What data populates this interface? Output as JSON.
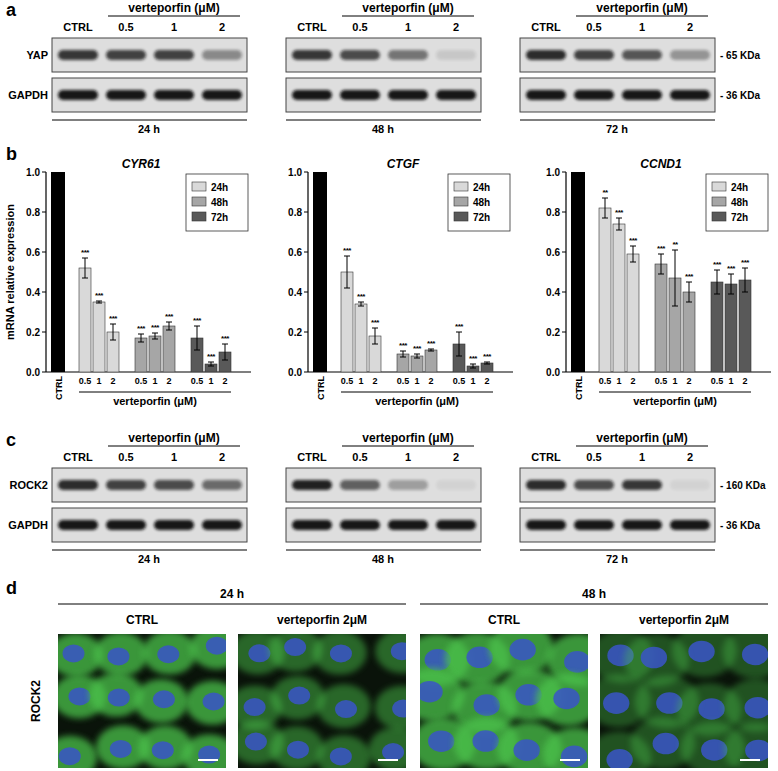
{
  "panel_labels": [
    "a",
    "b",
    "c",
    "d"
  ],
  "blots": [
    {
      "treatment": "verteporfin (μM)",
      "lanes": [
        "CTRL",
        "0.5",
        "1",
        "2"
      ],
      "markers": [
        {
          "name": "YAP",
          "size": "- 65 KDa"
        },
        {
          "name": "GAPDH",
          "size": "- 36 KDa"
        }
      ],
      "groups": [
        {
          "time": "24 h",
          "intensity": [
            [
              0.8,
              0.75,
              0.75,
              0.4
            ],
            [
              0.95,
              0.95,
              0.95,
              0.95
            ]
          ]
        },
        {
          "time": "48 h",
          "intensity": [
            [
              0.8,
              0.7,
              0.5,
              0.1
            ],
            [
              0.95,
              0.95,
              0.95,
              0.95
            ]
          ]
        },
        {
          "time": "72 h",
          "intensity": [
            [
              0.85,
              0.75,
              0.65,
              0.35
            ],
            [
              0.95,
              0.95,
              0.95,
              0.95
            ]
          ]
        }
      ]
    },
    {
      "treatment": "verteporfin (μM)",
      "lanes": [
        "CTRL",
        "0.5",
        "1",
        "2"
      ],
      "markers": [
        {
          "name": "ROCK2",
          "size": "- 160 KDa"
        },
        {
          "name": "GAPDH",
          "size": "- 36 KDa"
        }
      ],
      "groups": [
        {
          "time": "24 h",
          "intensity": [
            [
              0.85,
              0.75,
              0.7,
              0.55
            ],
            [
              0.95,
              0.95,
              0.95,
              0.95
            ]
          ]
        },
        {
          "time": "48 h",
          "intensity": [
            [
              0.9,
              0.6,
              0.3,
              0.05
            ],
            [
              0.95,
              0.95,
              0.95,
              0.95
            ]
          ]
        },
        {
          "time": "72 h",
          "intensity": [
            [
              0.85,
              0.7,
              0.8,
              0.05
            ],
            [
              0.95,
              0.95,
              0.95,
              0.95
            ]
          ]
        }
      ]
    }
  ],
  "chart_data": [
    {
      "type": "bar",
      "title": "CYR61",
      "ylabel": "mRNA relative expression",
      "xlabel": "verteporfin (μM)",
      "control": {
        "label": "CTRL",
        "value": 1,
        "color": "#000000"
      },
      "categories": [
        "0.5",
        "1",
        "2"
      ],
      "series": [
        {
          "name": "24h",
          "color": "#d9d9d9",
          "values": [
            0.52,
            0.35,
            0.2
          ],
          "errors": [
            0.05,
            0.005,
            0.04
          ],
          "significance": [
            "***",
            "***",
            "***"
          ]
        },
        {
          "name": "48h",
          "color": "#a6a6a6",
          "values": [
            0.17,
            0.18,
            0.23
          ],
          "errors": [
            0.02,
            0.015,
            0.02
          ],
          "significance": [
            "***",
            "***",
            "***"
          ]
        },
        {
          "name": "72h",
          "color": "#595959",
          "values": [
            0.17,
            0.04,
            0.1
          ],
          "errors": [
            0.06,
            0.01,
            0.04
          ],
          "significance": [
            "***",
            "***",
            "***"
          ]
        }
      ],
      "ylim": [
        0,
        1
      ],
      "yticks": [
        {
          "value": 0,
          "label": "0.0"
        },
        {
          "value": 0.2,
          "label": "0.2"
        },
        {
          "value": 0.4,
          "label": "0.4"
        },
        {
          "value": 0.6,
          "label": "0.6"
        },
        {
          "value": 0.8,
          "label": "0.8"
        },
        {
          "value": 1,
          "label": "1.0"
        }
      ],
      "legend": "upper right"
    },
    {
      "type": "bar",
      "title": "CTGF",
      "xlabel": "verteporfin (μM)",
      "control": {
        "label": "CTRL",
        "value": 1,
        "color": "#000000"
      },
      "categories": [
        "0.5",
        "1",
        "2"
      ],
      "series": [
        {
          "name": "24h",
          "color": "#d9d9d9",
          "values": [
            0.5,
            0.34,
            0.18
          ],
          "errors": [
            0.08,
            0.01,
            0.04
          ],
          "significance": [
            "***",
            "***",
            "***"
          ]
        },
        {
          "name": "48h",
          "color": "#a6a6a6",
          "values": [
            0.09,
            0.08,
            0.11
          ],
          "errors": [
            0.015,
            0.01,
            0.005
          ],
          "significance": [
            "***",
            "***",
            "***"
          ]
        },
        {
          "name": "72h",
          "color": "#595959",
          "values": [
            0.14,
            0.03,
            0.045
          ],
          "errors": [
            0.06,
            0.01,
            0.005
          ],
          "significance": [
            "***",
            "***",
            "***"
          ]
        }
      ],
      "ylim": [
        0,
        1
      ],
      "yticks": [
        {
          "value": 0,
          "label": "0.0"
        },
        {
          "value": 0.2,
          "label": "0.2"
        },
        {
          "value": 0.4,
          "label": "0.4"
        },
        {
          "value": 0.6,
          "label": "0.6"
        },
        {
          "value": 0.8,
          "label": "0.8"
        },
        {
          "value": 1,
          "label": "1.0"
        }
      ],
      "legend": "upper right"
    },
    {
      "type": "bar",
      "title": "CCND1",
      "xlabel": "verteporfin (μM)",
      "control": {
        "label": "CTRL",
        "value": 1,
        "color": "#000000"
      },
      "categories": [
        "0.5",
        "1",
        "2"
      ],
      "series": [
        {
          "name": "24h",
          "color": "#d9d9d9",
          "values": [
            0.82,
            0.74,
            0.59
          ],
          "errors": [
            0.05,
            0.03,
            0.04
          ],
          "significance": [
            "**",
            "***",
            "***"
          ]
        },
        {
          "name": "48h",
          "color": "#a6a6a6",
          "values": [
            0.54,
            0.47,
            0.4
          ],
          "errors": [
            0.05,
            0.14,
            0.05
          ],
          "significance": [
            "***",
            "**",
            "***"
          ]
        },
        {
          "name": "72h",
          "color": "#595959",
          "values": [
            0.45,
            0.44,
            0.46
          ],
          "errors": [
            0.06,
            0.05,
            0.06
          ],
          "significance": [
            "***",
            "***",
            "***"
          ]
        }
      ],
      "ylim": [
        0,
        1
      ],
      "yticks": [
        {
          "value": 0,
          "label": "0.0"
        },
        {
          "value": 0.2,
          "label": "0.2"
        },
        {
          "value": 0.4,
          "label": "0.4"
        },
        {
          "value": 0.6,
          "label": "0.6"
        },
        {
          "value": 0.8,
          "label": "0.8"
        },
        {
          "value": 1,
          "label": "1.0"
        }
      ],
      "legend": "upper right"
    }
  ],
  "images": {
    "row_label": "ROCK2",
    "groups": [
      {
        "time": "24 h",
        "panels": [
          {
            "condition": "CTRL",
            "signal": 1
          },
          {
            "condition": "verteporfin 2μM",
            "signal": 0.55
          }
        ]
      },
      {
        "time": "48 h",
        "panels": [
          {
            "condition": "CTRL",
            "signal": 1
          },
          {
            "condition": "verteporfin 2μM",
            "signal": 0.35
          }
        ]
      }
    ]
  }
}
